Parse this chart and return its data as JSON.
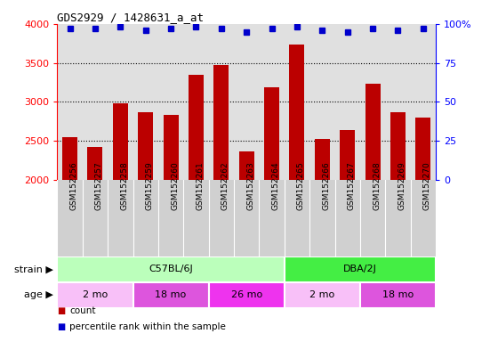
{
  "title": "GDS2929 / 1428631_a_at",
  "samples": [
    "GSM152256",
    "GSM152257",
    "GSM152258",
    "GSM152259",
    "GSM152260",
    "GSM152261",
    "GSM152262",
    "GSM152263",
    "GSM152264",
    "GSM152265",
    "GSM152266",
    "GSM152267",
    "GSM152268",
    "GSM152269",
    "GSM152270"
  ],
  "counts": [
    2550,
    2420,
    2980,
    2860,
    2830,
    3350,
    3470,
    2360,
    3190,
    3730,
    2520,
    2640,
    3230,
    2860,
    2800
  ],
  "percentiles": [
    97,
    97,
    98,
    96,
    97,
    98,
    97,
    95,
    97,
    98,
    96,
    95,
    97,
    96,
    97
  ],
  "bar_color": "#bb0000",
  "dot_color": "#0000cc",
  "ylim_left": [
    2000,
    4000
  ],
  "ylim_right": [
    0,
    100
  ],
  "yticks_left": [
    2000,
    2500,
    3000,
    3500,
    4000
  ],
  "yticks_right": [
    0,
    25,
    50,
    75,
    100
  ],
  "grid_lines": [
    2500,
    3000,
    3500
  ],
  "strain_groups": [
    {
      "label": "C57BL/6J",
      "start": 0,
      "end": 9,
      "color": "#bbffbb"
    },
    {
      "label": "DBA/2J",
      "start": 9,
      "end": 15,
      "color": "#44ee44"
    }
  ],
  "age_groups": [
    {
      "label": "2 mo",
      "start": 0,
      "end": 3,
      "color": "#f8c0f8"
    },
    {
      "label": "18 mo",
      "start": 3,
      "end": 6,
      "color": "#dd55dd"
    },
    {
      "label": "26 mo",
      "start": 6,
      "end": 9,
      "color": "#ee33ee"
    },
    {
      "label": "2 mo",
      "start": 9,
      "end": 12,
      "color": "#f8c0f8"
    },
    {
      "label": "18 mo",
      "start": 12,
      "end": 15,
      "color": "#dd55dd"
    }
  ],
  "plot_bg": "#e0e0e0",
  "label_bg": "#d0d0d0",
  "fig_bg": "#ffffff",
  "legend": [
    {
      "label": "count",
      "color": "#bb0000"
    },
    {
      "label": "percentile rank within the sample",
      "color": "#0000cc"
    }
  ]
}
